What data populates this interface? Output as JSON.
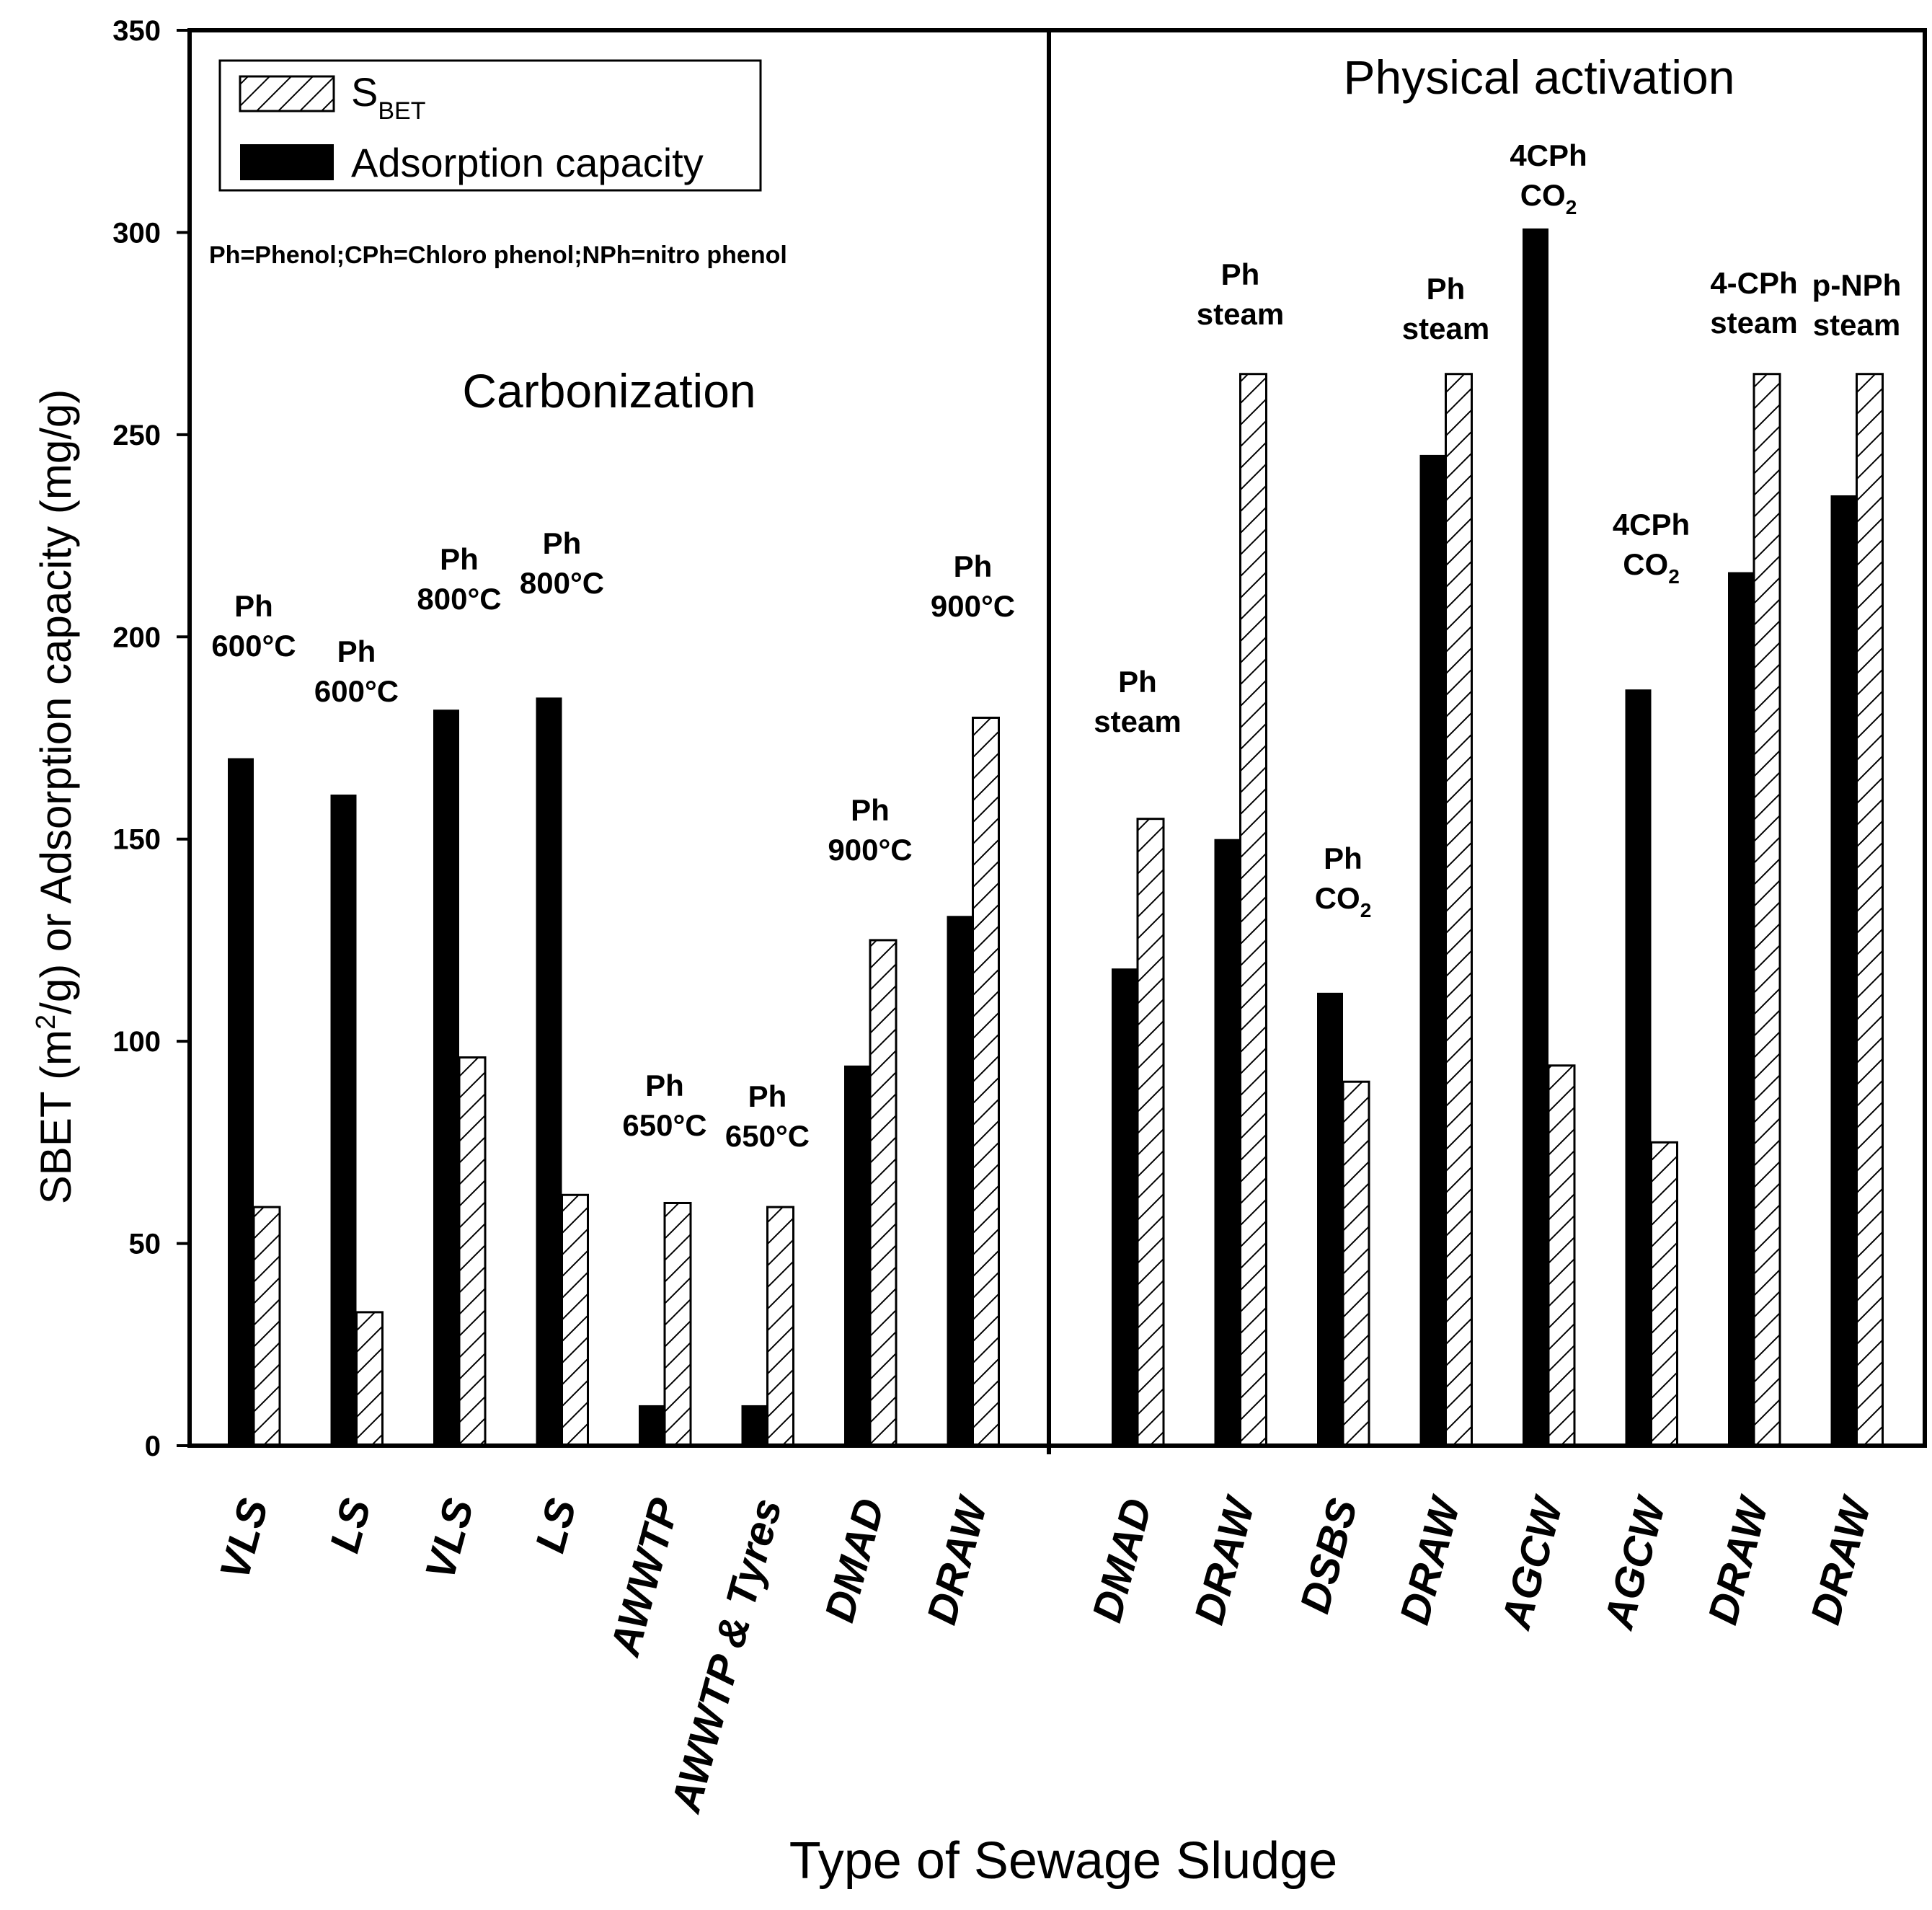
{
  "chart_data": {
    "type": "bar",
    "title": "",
    "xlabel": "Type of Sewage Sludge",
    "ylabel": {
      "before_sup": "SBET (m",
      "sup": "2",
      "after_sup": "/g) or Adsorption capacity (mg/g)"
    },
    "ylim": [
      0,
      350
    ],
    "yticks": [
      0,
      50,
      100,
      150,
      200,
      250,
      300,
      350
    ],
    "categories": [
      "VLS",
      "LS",
      "VLS",
      "LS",
      "AWWTP",
      "AWWTP & Tyres",
      "DMAD",
      "DRAW",
      "DMAD",
      "DRAW",
      "DSBS",
      "DRAW",
      "AGCW",
      "AGCW",
      "DRAW",
      "DRAW"
    ],
    "series": [
      {
        "name": "Adsorption capacity",
        "fill": "#000000",
        "values": [
          170,
          161,
          182,
          185,
          10,
          10,
          94,
          131,
          118,
          150,
          112,
          245,
          301,
          187,
          216,
          235
        ]
      },
      {
        "name": "SBET",
        "fill": "hatched",
        "values": [
          59,
          33,
          96,
          62,
          60,
          59,
          125,
          180,
          155,
          265,
          90,
          265,
          94,
          75,
          265,
          265
        ]
      }
    ],
    "legend": {
      "position": "top-left",
      "sbet": {
        "main": "S",
        "sub": "BET"
      },
      "adsorption": "Adsorption capacity"
    },
    "note": "Ph=Phenol;CPh=Chloro phenol;NPh=nitro phenol",
    "regions": [
      "Carbonization",
      "Physical activation"
    ],
    "annotations": [
      {
        "lines": [
          "Ph",
          "600°C"
        ]
      },
      {
        "lines": [
          "Ph",
          "600°C"
        ]
      },
      {
        "lines": [
          "Ph",
          "800°C"
        ]
      },
      {
        "lines": [
          "Ph",
          "800°C"
        ]
      },
      {
        "lines": [
          "Ph",
          "650°C"
        ]
      },
      {
        "lines": [
          "Ph",
          "650°C"
        ]
      },
      {
        "lines": [
          "Ph",
          "900°C"
        ]
      },
      {
        "lines": [
          "Ph",
          "900°C"
        ]
      },
      {
        "lines": [
          "Ph",
          "steam"
        ]
      },
      {
        "lines": [
          "Ph",
          "steam"
        ]
      },
      {
        "lines": [
          "Ph",
          "CO2"
        ]
      },
      {
        "lines": [
          "Ph",
          "steam"
        ]
      },
      {
        "lines": [
          "4CPh",
          "CO2"
        ]
      },
      {
        "lines": [
          "4CPh",
          "CO2"
        ]
      },
      {
        "lines": [
          "4-CPh",
          "steam"
        ]
      },
      {
        "lines": [
          "p-NPh",
          "steam"
        ]
      }
    ]
  }
}
